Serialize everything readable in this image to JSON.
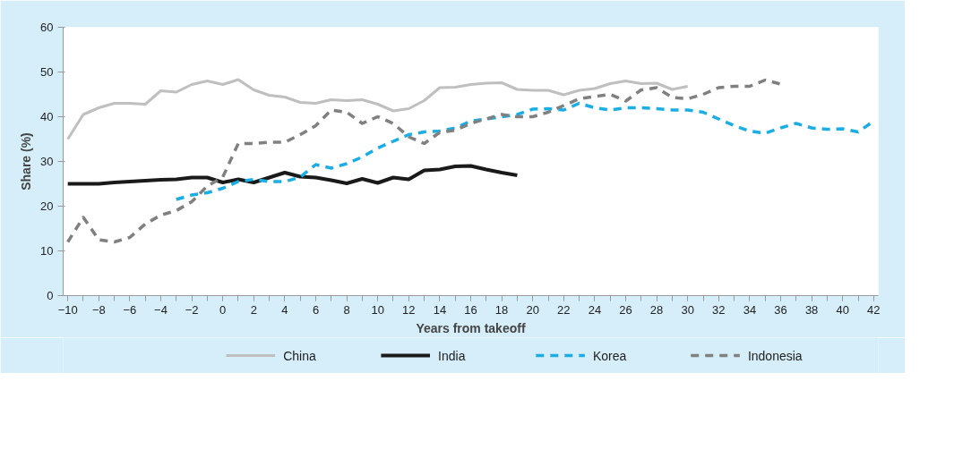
{
  "chart_data": {
    "type": "line",
    "xlabel": "Years from takeoff",
    "ylabel": "Share (%)",
    "xlim": [
      -10.3,
      42.3
    ],
    "ylim": [
      0,
      60
    ],
    "xticks": [
      -10,
      -8,
      -6,
      -4,
      -2,
      0,
      2,
      4,
      6,
      8,
      10,
      12,
      14,
      16,
      18,
      20,
      22,
      24,
      26,
      28,
      30,
      32,
      34,
      36,
      38,
      40,
      42
    ],
    "yticks": [
      0,
      10,
      20,
      30,
      40,
      50,
      60
    ],
    "grid": false,
    "legend": "bottom",
    "series": [
      {
        "name": "China",
        "color": "#bfbfbf",
        "line_style": "solid",
        "x": [
          -10,
          -9,
          -8,
          -7,
          -6,
          -5,
          -4,
          -3,
          -2,
          -1,
          0,
          1,
          2,
          3,
          4,
          5,
          6,
          7,
          8,
          9,
          10,
          11,
          12,
          13,
          14,
          15,
          16,
          17,
          18,
          19,
          20,
          21,
          22,
          23,
          24,
          25,
          26,
          27,
          28,
          29,
          30
        ],
        "values": [
          35,
          40.5,
          42,
          43,
          43,
          42.8,
          45.8,
          45.5,
          47.2,
          48,
          47.2,
          48.3,
          46,
          44.8,
          44.4,
          43.2,
          43,
          43.8,
          43.6,
          43.8,
          42.8,
          41.3,
          41.8,
          43.6,
          46.5,
          46.6,
          47.2,
          47.5,
          47.6,
          46.1,
          45.9,
          45.9,
          44.9,
          45.9,
          46.3,
          47.4,
          48,
          47.4,
          47.5,
          46.1,
          46.8
        ]
      },
      {
        "name": "India",
        "color": "#1a1a1a",
        "line_style": "solid",
        "x": [
          -10,
          -9,
          -8,
          -7,
          -6,
          -5,
          -4,
          -3,
          -2,
          -1,
          0,
          1,
          2,
          3,
          4,
          5,
          6,
          7,
          8,
          9,
          10,
          11,
          12,
          13,
          14,
          15,
          16,
          17,
          18,
          19
        ],
        "values": [
          25,
          25,
          25,
          25.3,
          25.5,
          25.7,
          25.9,
          26,
          26.4,
          26.4,
          25.3,
          26,
          25.3,
          26.4,
          27.5,
          26.6,
          26.4,
          25.8,
          25.1,
          26.1,
          25.2,
          26.4,
          26,
          28,
          28.2,
          28.9,
          29,
          28.2,
          27.5,
          26.9
        ]
      },
      {
        "name": "Korea",
        "color": "#1aaee5",
        "line_style": "dashed",
        "x": [
          -3,
          -2,
          -1,
          0,
          1,
          2,
          3,
          4,
          5,
          6,
          7,
          8,
          9,
          10,
          11,
          12,
          13,
          14,
          15,
          16,
          17,
          18,
          19,
          20,
          21,
          22,
          23,
          24,
          25,
          26,
          27,
          28,
          29,
          30,
          31,
          32,
          33,
          34,
          35,
          36,
          37,
          38,
          39,
          40,
          41,
          42
        ],
        "values": [
          21.5,
          22.5,
          23,
          24,
          25.5,
          26,
          25.5,
          25.5,
          26.5,
          29.3,
          28.5,
          29.5,
          31,
          33,
          34.5,
          36,
          36.6,
          36.8,
          37.5,
          39,
          39.5,
          40,
          40.5,
          41.7,
          41.8,
          41.5,
          43,
          42,
          41.5,
          42,
          42,
          41.8,
          41.5,
          41.5,
          41,
          39.5,
          38,
          36.8,
          36.3,
          37.5,
          38.5,
          37.5,
          37.2,
          37.3,
          36.6,
          39
        ]
      },
      {
        "name": "Indonesia",
        "color": "#808080",
        "line_style": "dashed",
        "x": [
          -10,
          -9,
          -8,
          -7,
          -6,
          -5,
          -4,
          -3,
          -2,
          -1,
          0,
          1,
          2,
          3,
          4,
          5,
          6,
          7,
          8,
          9,
          10,
          11,
          12,
          13,
          14,
          15,
          16,
          17,
          18,
          19,
          20,
          21,
          22,
          23,
          24,
          25,
          26,
          27,
          28,
          29,
          30,
          31,
          32,
          33,
          34,
          35,
          36
        ],
        "values": [
          12,
          17.5,
          12.5,
          12,
          13,
          16,
          18,
          19,
          21,
          24.5,
          26.5,
          34,
          34,
          34.3,
          34.3,
          36,
          38,
          41.5,
          41,
          38.5,
          40,
          38.5,
          35.5,
          34,
          36.5,
          37,
          38.5,
          39.5,
          40.5,
          40,
          40,
          41,
          42.5,
          44,
          44.5,
          45,
          43.5,
          46,
          46.5,
          44.3,
          44,
          45,
          46.5,
          46.8,
          46.8,
          48.2,
          47.3
        ]
      }
    ]
  }
}
